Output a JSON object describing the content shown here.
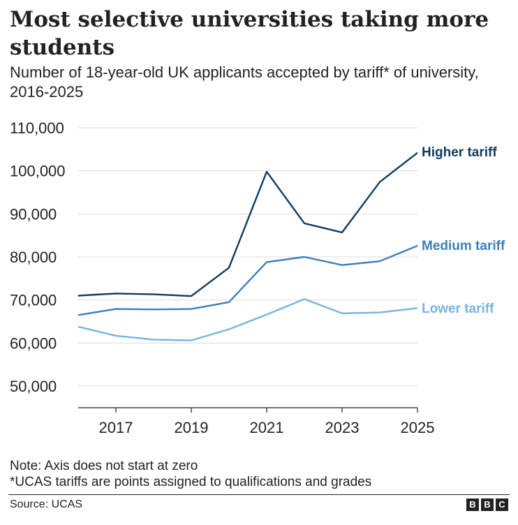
{
  "title": "Most selective universities taking more students",
  "subtitle": "Number of 18-year-old UK applicants accepted by tariff* of university, 2016-2025",
  "notes": {
    "note1": "Note: Axis does not start at zero",
    "note2": "*UCAS tariffs are points assigned to qualifications and grades"
  },
  "source": "Source: UCAS",
  "logo": [
    "B",
    "B",
    "C"
  ],
  "colors": {
    "higher": "#0f3b5f",
    "medium": "#3e7fb7",
    "lower": "#79b3e0",
    "grid": "#dddddd",
    "axis": "#222222"
  },
  "chart_data": {
    "type": "line",
    "x": [
      2016,
      2017,
      2018,
      2019,
      2020,
      2021,
      2022,
      2023,
      2024,
      2025
    ],
    "xticks": [
      2017,
      2019,
      2021,
      2023,
      2025
    ],
    "xtick_labels": [
      "2017",
      "2019",
      "2021",
      "2023",
      "2025"
    ],
    "ylim": [
      45000,
      110000
    ],
    "yticks": [
      50000,
      60000,
      70000,
      80000,
      90000,
      100000,
      110000
    ],
    "ytick_labels": [
      "50,000",
      "60,000",
      "70,000",
      "80,000",
      "90,000",
      "100,000",
      "110,000"
    ],
    "grid": true,
    "series": [
      {
        "name": "Higher tariff",
        "color": "#0f3b5f",
        "values": [
          71000,
          71500,
          71300,
          70900,
          77500,
          99800,
          87800,
          85700,
          97400,
          104200
        ]
      },
      {
        "name": "Medium tariff",
        "color": "#3e7fb7",
        "values": [
          66500,
          67900,
          67800,
          67900,
          69500,
          78800,
          80000,
          78100,
          79000,
          82600
        ]
      },
      {
        "name": "Lower tariff",
        "color": "#79b3e0",
        "values": [
          63800,
          61700,
          60800,
          60600,
          63200,
          66600,
          70200,
          66900,
          67100,
          68100
        ]
      }
    ]
  }
}
